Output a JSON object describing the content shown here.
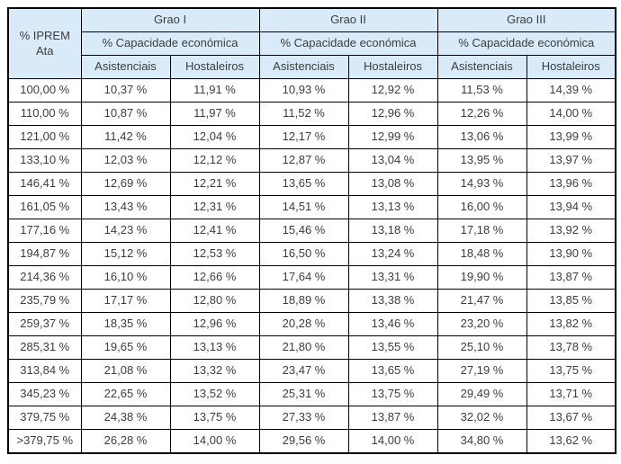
{
  "colors": {
    "header_bg": "#d9eaf8",
    "border": "#000000",
    "text": "#3d3d3d",
    "page_bg": "#ffffff"
  },
  "table": {
    "corner_header": "% IPREM Ata",
    "groups": [
      {
        "label": "Grao I",
        "subheader": "% Capacidade económica"
      },
      {
        "label": "Grao II",
        "subheader": "% Capacidade económica"
      },
      {
        "label": "Grao III",
        "subheader": "% Capacidade económica"
      }
    ],
    "column_headers": [
      "Asistenciais",
      "Hostaleiros"
    ],
    "rows": [
      {
        "iprem": "100,00 %",
        "values": [
          "10,37 %",
          "11,91 %",
          "10,93 %",
          "12,92 %",
          "11,53 %",
          "14,39 %"
        ]
      },
      {
        "iprem": "110,00 %",
        "values": [
          "10,87 %",
          "11,97 %",
          "11,52 %",
          "12,96 %",
          "12,26 %",
          "14,00 %"
        ]
      },
      {
        "iprem": "121,00 %",
        "values": [
          "11,42 %",
          "12,04 %",
          "12,17 %",
          "12,99 %",
          "13,06 %",
          "13,99 %"
        ]
      },
      {
        "iprem": "133,10 %",
        "values": [
          "12,03 %",
          "12,12 %",
          "12,87 %",
          "13,04 %",
          "13,95 %",
          "13,97 %"
        ]
      },
      {
        "iprem": "146,41 %",
        "values": [
          "12,69 %",
          "12,21 %",
          "13,65 %",
          "13,08 %",
          "14,93 %",
          "13,96 %"
        ]
      },
      {
        "iprem": "161,05 %",
        "values": [
          "13,43 %",
          "12,31 %",
          "14,51 %",
          "13,13 %",
          "16,00 %",
          "13,94 %"
        ]
      },
      {
        "iprem": "177,16 %",
        "values": [
          "14,23 %",
          "12,41 %",
          "15,46 %",
          "13,18 %",
          "17,18 %",
          "13,92 %"
        ]
      },
      {
        "iprem": "194,87 %",
        "values": [
          "15,12 %",
          "12,53 %",
          "16,50 %",
          "13,24 %",
          "18,48 %",
          "13,90 %"
        ]
      },
      {
        "iprem": "214,36 %",
        "values": [
          "16,10 %",
          "12,66 %",
          "17,64 %",
          "13,31 %",
          "19,90 %",
          "13,87 %"
        ]
      },
      {
        "iprem": "235,79 %",
        "values": [
          "17,17 %",
          "12,80 %",
          "18,89 %",
          "13,38 %",
          "21,47 %",
          "13,85 %"
        ]
      },
      {
        "iprem": "259,37 %",
        "values": [
          "18,35 %",
          "12,96 %",
          "20,28 %",
          "13,46 %",
          "23,20 %",
          "13,82 %"
        ]
      },
      {
        "iprem": "285,31 %",
        "values": [
          "19,65 %",
          "13,13 %",
          "21,80 %",
          "13,55 %",
          "25,10 %",
          "13,78 %"
        ]
      },
      {
        "iprem": "313,84 %",
        "values": [
          "21,08 %",
          "13,32 %",
          "23,47 %",
          "13,65 %",
          "27,19 %",
          "13,75 %"
        ]
      },
      {
        "iprem": "345,23 %",
        "values": [
          "22,65 %",
          "13,52 %",
          "25,31 %",
          "13,75 %",
          "29,49 %",
          "13,71 %"
        ]
      },
      {
        "iprem": "379,75 %",
        "values": [
          "24,38 %",
          "13,75 %",
          "27,33 %",
          "13,87 %",
          "32,02 %",
          "13,67 %"
        ]
      },
      {
        "iprem": ">379,75 %",
        "values": [
          "26,28 %",
          "14,00 %",
          "29,56 %",
          "14,00 %",
          "34,80 %",
          "13,62 %"
        ]
      }
    ]
  }
}
